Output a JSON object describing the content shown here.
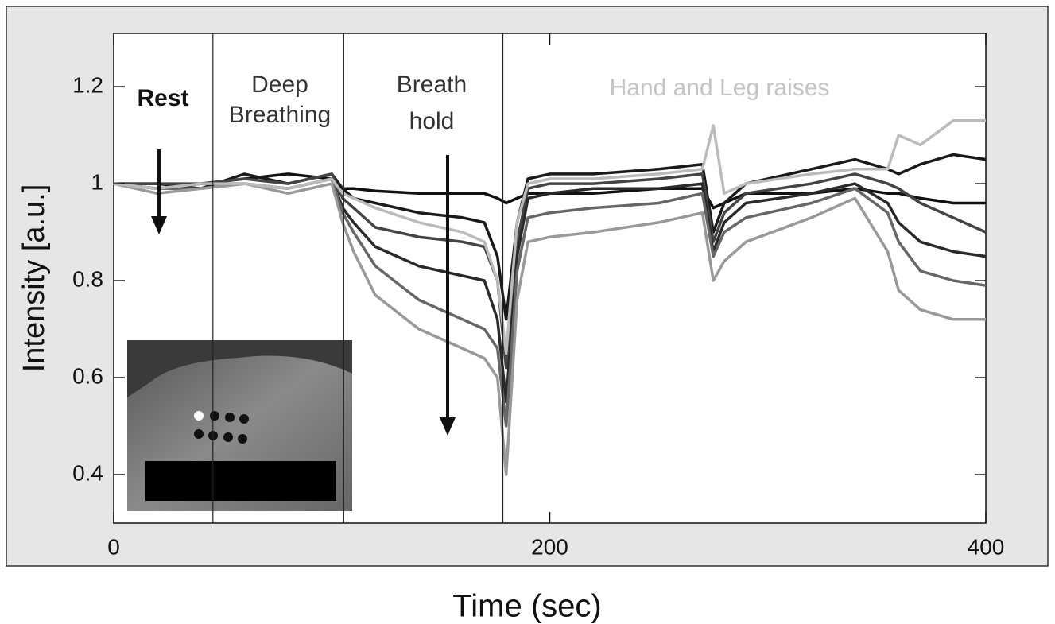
{
  "chart_data": {
    "type": "line",
    "xlabel": "Time (sec)",
    "ylabel": "Intensity [a.u.]",
    "annotations": [
      "Rest",
      "Deep",
      "Breathing",
      "Breath",
      "hold",
      "Hand and Leg raises"
    ],
    "phase_boundaries": [
      45.5,
      105.5,
      178.5
    ],
    "xlim": [
      0,
      400
    ],
    "xticks": [
      0,
      200,
      400
    ],
    "ylim": [
      0.3,
      1.31
    ],
    "yticks": [
      0.4,
      0.6,
      0.8,
      1.0,
      1.2
    ],
    "x": [
      0,
      20,
      40,
      60,
      80,
      100,
      105,
      110,
      120,
      140,
      160,
      170,
      176,
      180,
      185,
      190,
      200,
      220,
      250,
      270,
      275,
      280,
      290,
      320,
      340,
      355,
      360,
      370,
      385,
      400
    ],
    "series": [
      {
        "color": "#111111",
        "values": [
          1.0,
          0.99,
          1.0,
          1.01,
          1.02,
          1.01,
          0.99,
          0.99,
          0.985,
          0.98,
          0.98,
          0.98,
          0.97,
          0.96,
          0.97,
          0.98,
          0.98,
          0.98,
          0.99,
          0.99,
          0.95,
          0.96,
          0.98,
          0.98,
          0.99,
          0.98,
          0.98,
          0.97,
          0.96,
          0.96
        ]
      },
      {
        "color": "#1a1a1a",
        "values": [
          1.0,
          1.0,
          0.99,
          1.02,
          1.0,
          1.02,
          0.99,
          0.97,
          0.96,
          0.94,
          0.93,
          0.92,
          0.85,
          0.72,
          0.92,
          1.01,
          1.02,
          1.02,
          1.03,
          1.04,
          0.9,
          0.96,
          1.0,
          1.03,
          1.05,
          1.03,
          1.02,
          1.04,
          1.06,
          1.05
        ]
      },
      {
        "color": "#444444",
        "values": [
          1.0,
          1.0,
          1.0,
          1.01,
          1.0,
          1.02,
          0.97,
          0.95,
          0.91,
          0.89,
          0.88,
          0.87,
          0.8,
          0.62,
          0.88,
          0.99,
          1.0,
          1.0,
          1.01,
          1.02,
          0.88,
          0.94,
          0.98,
          1.0,
          1.02,
          1.0,
          0.99,
          0.96,
          0.93,
          0.9
        ]
      },
      {
        "color": "#2a2a2a",
        "values": [
          1.0,
          0.99,
          1.0,
          1.0,
          0.99,
          1.01,
          0.95,
          0.92,
          0.87,
          0.83,
          0.81,
          0.8,
          0.72,
          0.55,
          0.85,
          0.97,
          0.98,
          0.99,
          0.99,
          1.0,
          0.86,
          0.92,
          0.96,
          0.98,
          1.0,
          0.96,
          0.92,
          0.88,
          0.86,
          0.85
        ]
      },
      {
        "color": "#666666",
        "values": [
          1.0,
          0.99,
          0.99,
          1.0,
          0.99,
          1.01,
          0.94,
          0.9,
          0.83,
          0.76,
          0.72,
          0.7,
          0.66,
          0.5,
          0.82,
          0.93,
          0.94,
          0.95,
          0.96,
          0.98,
          0.85,
          0.9,
          0.93,
          0.96,
          0.99,
          0.94,
          0.88,
          0.82,
          0.8,
          0.79
        ]
      },
      {
        "color": "#999999",
        "values": [
          1.0,
          0.98,
          0.99,
          1.0,
          0.98,
          1.0,
          0.92,
          0.86,
          0.77,
          0.7,
          0.66,
          0.64,
          0.6,
          0.4,
          0.76,
          0.88,
          0.89,
          0.9,
          0.92,
          0.94,
          0.8,
          0.84,
          0.88,
          0.93,
          0.97,
          0.86,
          0.78,
          0.74,
          0.72,
          0.72
        ]
      },
      {
        "color": "#bbbbbb",
        "values": [
          1.0,
          0.99,
          1.0,
          1.0,
          0.99,
          1.01,
          0.98,
          0.97,
          0.95,
          0.92,
          0.9,
          0.88,
          0.8,
          0.65,
          0.92,
          1.0,
          1.01,
          1.01,
          1.02,
          1.03,
          1.12,
          0.98,
          1.0,
          1.02,
          1.03,
          1.03,
          1.1,
          1.08,
          1.13,
          1.13
        ]
      }
    ]
  }
}
